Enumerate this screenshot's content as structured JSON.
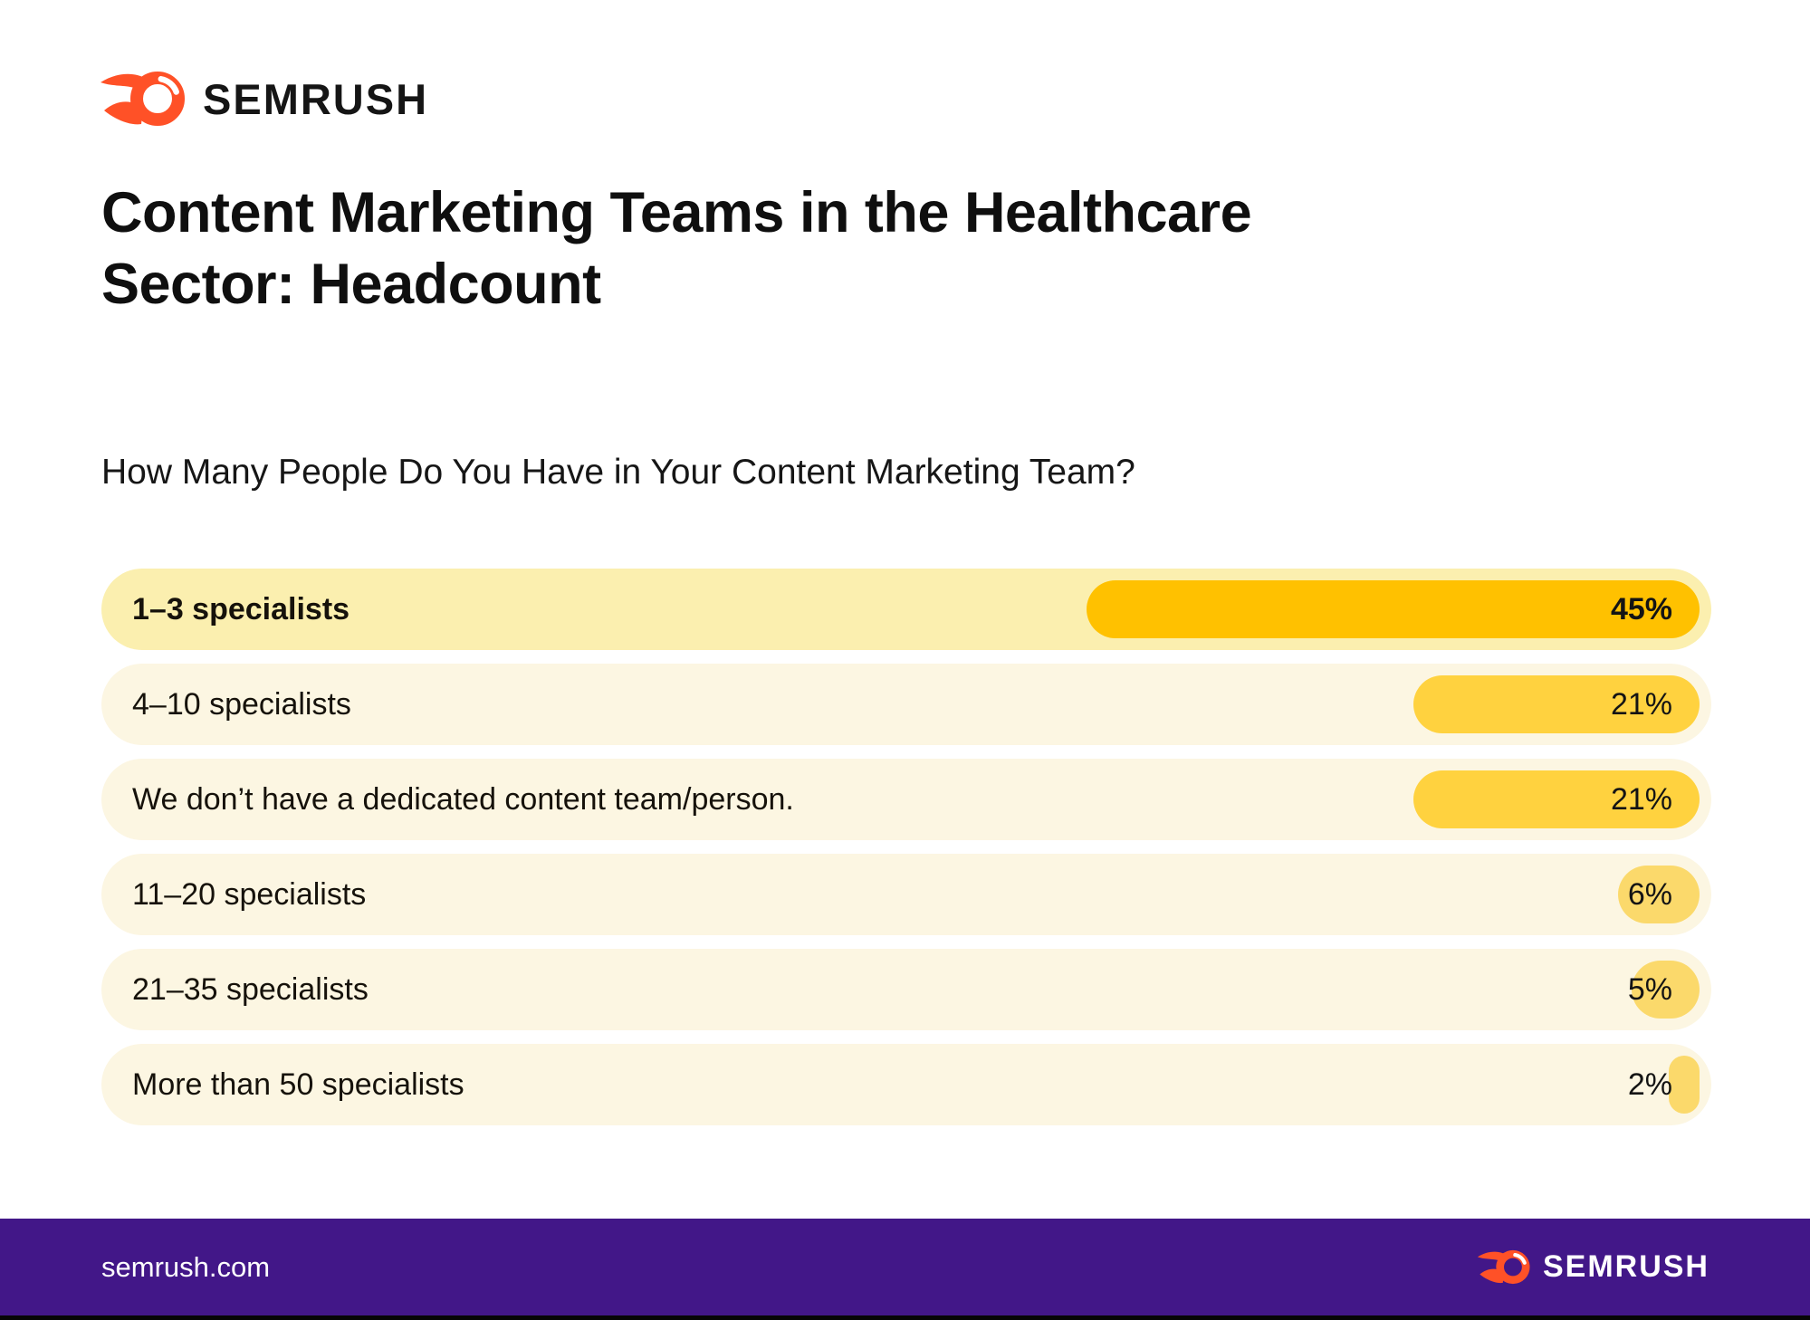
{
  "header": {
    "brand": "SEMRUSH"
  },
  "title": {
    "line1": "Content Marketing Teams in the Healthcare",
    "line2": "Sector: Headcount"
  },
  "subtitle": "How Many People Do You Have in Your Content Marketing Team?",
  "chart_data": {
    "type": "bar",
    "orientation": "horizontal",
    "unit": "%",
    "xlim": [
      0,
      45
    ],
    "categories": [
      "1–3 specialists",
      "4–10 specialists",
      "We don’t have a dedicated content team/person.",
      "11–20 specialists",
      "21–35 specialists",
      "More than 50 specialists"
    ],
    "values": [
      45,
      21,
      21,
      6,
      5,
      2
    ],
    "rows": [
      {
        "label": "1–3 specialists",
        "value": 45,
        "display": "45%",
        "highlighted": true,
        "tier": "primary"
      },
      {
        "label": "4–10 specialists",
        "value": 21,
        "display": "21%",
        "highlighted": false,
        "tier": "secondary"
      },
      {
        "label": "We don’t have a dedicated content team/person.",
        "value": 21,
        "display": "21%",
        "highlighted": false,
        "tier": "secondary"
      },
      {
        "label": "11–20 specialists",
        "value": 6,
        "display": "6%",
        "highlighted": false,
        "tier": "small"
      },
      {
        "label": "21–35 specialists",
        "value": 5,
        "display": "5%",
        "highlighted": false,
        "tier": "small"
      },
      {
        "label": "More than 50 specialists",
        "value": 2,
        "display": "2%",
        "highlighted": false,
        "tier": "small"
      }
    ]
  },
  "footer": {
    "url": "semrush.com",
    "brand": "SEMRUSH"
  },
  "colors": {
    "bar_primary": "#FFC100",
    "bar_secondary": "#FFD23F",
    "bar_small": "#FBD96B",
    "row_highlight_bg": "#FBEFAF",
    "row_bg": "#FCF6E2",
    "footer_bg": "#421788",
    "brand_orange": "#FF5127",
    "text_dark": "#121212",
    "text_white": "#FFFFFF"
  }
}
